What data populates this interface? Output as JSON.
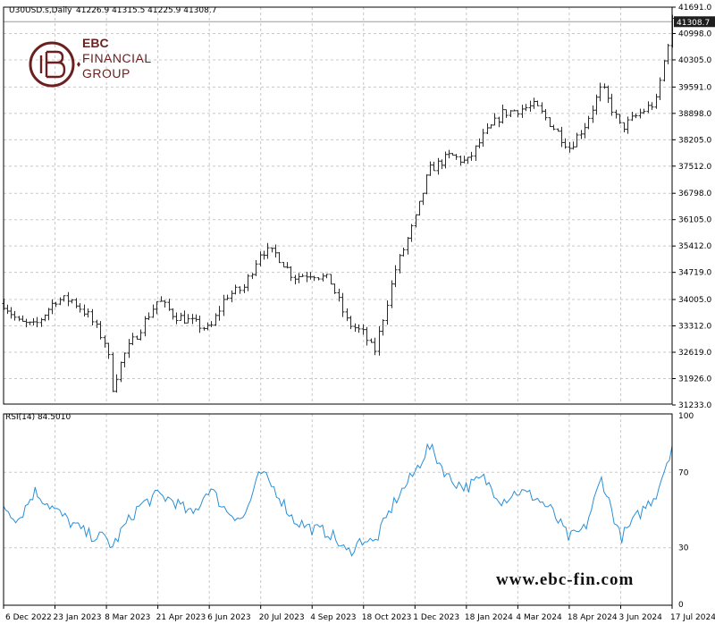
{
  "colors": {
    "price_bars": "#2b2b2b",
    "rsi_line": "#2a8fd6",
    "grid": "#c8c8c8",
    "last_price_bg": "#1f1f1f",
    "brand": "#6b1f1f"
  },
  "watermark": {
    "brand_line1": "EBC",
    "brand_line2": "FINANCIAL",
    "brand_line3": "GROUP",
    "website": "www.ebc-fin.com",
    "logo_icon": "ebc-monogram-icon"
  },
  "chart_data": [
    {
      "type": "ohlc",
      "title": "U30USD.s,Daily",
      "ohlc_header": "41226.9 41315.5 41225.9 41308.7",
      "last_price": "41308.7",
      "ylim": [
        31233,
        41691
      ],
      "y_ticks": [
        "41691.0",
        "40998.0",
        "40305.0",
        "39591.0",
        "38898.0",
        "38205.0",
        "37512.0",
        "36798.0",
        "36105.0",
        "35412.0",
        "34719.0",
        "34005.0",
        "33312.0",
        "32619.0",
        "31926.0",
        "31233.0"
      ],
      "x_ticks": [
        "6 Dec 2022",
        "23 Jan 2023",
        "8 Mar 2023",
        "21 Apr 2023",
        "6 Jun 2023",
        "20 Jul 2023",
        "4 Sep 2023",
        "18 Oct 2023",
        "1 Dec 2023",
        "18 Jan 2024",
        "4 Mar 2024",
        "18 Apr 2024",
        "3 Jun 2024",
        "17 Jul 2024"
      ],
      "series": [
        {
          "x": [
            "2022-12-06",
            "2022-12-20",
            "2023-01-04",
            "2023-01-23",
            "2023-02-06",
            "2023-02-20",
            "2023-03-08",
            "2023-03-13",
            "2023-03-22",
            "2023-04-05",
            "2023-04-21",
            "2023-05-05",
            "2023-05-22",
            "2023-06-06",
            "2023-06-20",
            "2023-07-05",
            "2023-07-20",
            "2023-08-03",
            "2023-08-18",
            "2023-09-04",
            "2023-09-19",
            "2023-10-04",
            "2023-10-18",
            "2023-10-27",
            "2023-11-14",
            "2023-12-01",
            "2023-12-14",
            "2024-01-03",
            "2024-01-18",
            "2024-02-02",
            "2024-02-19",
            "2024-03-04",
            "2024-03-19",
            "2024-04-02",
            "2024-04-18",
            "2024-05-02",
            "2024-05-17",
            "2024-06-03",
            "2024-06-19",
            "2024-07-03",
            "2024-07-17"
          ],
          "values": [
            33900,
            33400,
            33300,
            34000,
            34000,
            33600,
            32800,
            31700,
            32500,
            33200,
            34000,
            33600,
            33400,
            33200,
            34100,
            34300,
            35300,
            35200,
            34600,
            34700,
            34500,
            33400,
            33100,
            32600,
            34800,
            36100,
            37400,
            37800,
            37600,
            38300,
            38900,
            39000,
            39100,
            38600,
            38000,
            38600,
            39600,
            38500,
            38900,
            39200,
            41300
          ]
        }
      ]
    },
    {
      "type": "line",
      "title": "RSI(14) 84.5010",
      "ylim": [
        0,
        100
      ],
      "y_ticks": [
        "100",
        "70",
        "30",
        "0"
      ],
      "series": [
        {
          "x": [
            "2022-12-06",
            "2022-12-20",
            "2023-01-04",
            "2023-01-23",
            "2023-02-06",
            "2023-02-20",
            "2023-03-08",
            "2023-03-13",
            "2023-03-22",
            "2023-04-05",
            "2023-04-21",
            "2023-05-05",
            "2023-05-22",
            "2023-06-06",
            "2023-06-20",
            "2023-07-05",
            "2023-07-20",
            "2023-08-03",
            "2023-08-18",
            "2023-09-04",
            "2023-09-19",
            "2023-10-04",
            "2023-10-18",
            "2023-10-27",
            "2023-11-14",
            "2023-12-01",
            "2023-12-14",
            "2024-01-03",
            "2024-01-18",
            "2024-02-02",
            "2024-02-19",
            "2024-03-04",
            "2024-03-19",
            "2024-04-02",
            "2024-04-18",
            "2024-05-02",
            "2024-05-17",
            "2024-06-03",
            "2024-06-19",
            "2024-07-03",
            "2024-07-17"
          ],
          "values": [
            52,
            45,
            60,
            50,
            43,
            37,
            35,
            30,
            40,
            52,
            58,
            55,
            47,
            62,
            50,
            45,
            70,
            60,
            45,
            40,
            38,
            27,
            35,
            32,
            55,
            70,
            84,
            66,
            62,
            67,
            55,
            60,
            57,
            50,
            35,
            40,
            67,
            35,
            48,
            58,
            84
          ]
        }
      ]
    }
  ]
}
